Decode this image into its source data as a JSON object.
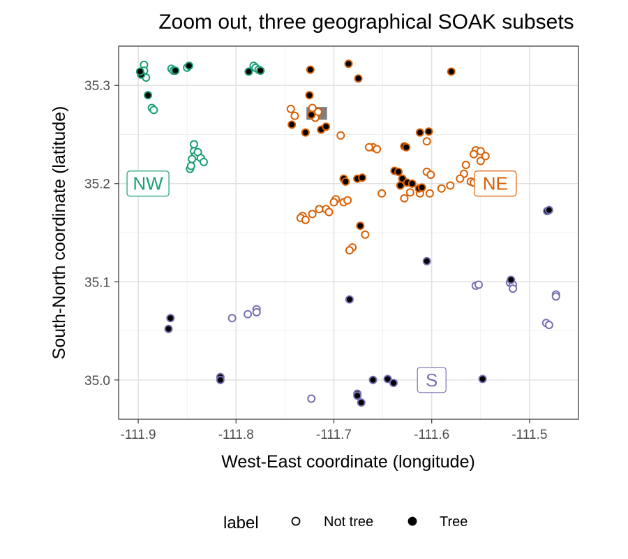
{
  "chart_data": {
    "type": "scatter",
    "title": "Zoom out, three geographical SOAK subsets",
    "xlabel": "West-East coordinate (longitude)",
    "ylabel": "South-North coordinate (latitude)",
    "xlim": [
      -111.92,
      -111.45
    ],
    "ylim": [
      34.96,
      35.34
    ],
    "x_ticks": [
      -111.9,
      -111.8,
      -111.7,
      -111.6,
      -111.5
    ],
    "x_tick_labels": [
      "-111.9",
      "-111.8",
      "-111.7",
      "-111.6",
      "-111.5"
    ],
    "y_ticks": [
      35.0,
      35.1,
      35.2,
      35.3
    ],
    "y_tick_labels": [
      "35.0",
      "35.1",
      "35.2",
      "35.3"
    ],
    "grid": true,
    "legend": {
      "title": "label",
      "placement": "bottom",
      "entries": [
        {
          "name": "Not tree",
          "marker": "open-circle"
        },
        {
          "name": "Tree",
          "marker": "filled-circle"
        }
      ]
    },
    "regions": [
      {
        "name": "NW",
        "color": "#1b9e77",
        "label_x": -111.89,
        "label_y": 35.2
      },
      {
        "name": "NE",
        "color": "#d95f02",
        "label_x": -111.535,
        "label_y": 35.2
      },
      {
        "name": "S",
        "color": "#7570b3",
        "label_x": -111.6,
        "label_y": 35.0
      }
    ],
    "highlight_box": {
      "x_range": [
        -111.728,
        -111.707
      ],
      "y_range": [
        35.265,
        35.278
      ],
      "color": "#7f7f7f"
    },
    "series": [
      {
        "region": "NW",
        "color": "#1b9e77",
        "not_tree": [
          [
            -111.894,
            35.321
          ],
          [
            -111.894,
            35.315
          ],
          [
            -111.892,
            35.308
          ],
          [
            -111.886,
            35.277
          ],
          [
            -111.884,
            35.275
          ],
          [
            -111.866,
            35.317
          ],
          [
            -111.864,
            35.315
          ],
          [
            -111.85,
            35.318
          ],
          [
            -111.843,
            35.24
          ],
          [
            -111.843,
            35.233
          ],
          [
            -111.842,
            35.228
          ],
          [
            -111.845,
            35.225
          ],
          [
            -111.839,
            35.232
          ],
          [
            -111.836,
            35.226
          ],
          [
            -111.847,
            35.215
          ],
          [
            -111.846,
            35.218
          ],
          [
            -111.833,
            35.222
          ],
          [
            -111.782,
            35.32
          ],
          [
            -111.78,
            35.318
          ],
          [
            -111.777,
            35.316
          ]
        ],
        "tree": [
          [
            -111.897,
            35.311
          ],
          [
            -111.898,
            35.314
          ],
          [
            -111.89,
            35.29
          ],
          [
            -111.862,
            35.315
          ],
          [
            -111.848,
            35.32
          ],
          [
            -111.787,
            35.314
          ],
          [
            -111.775,
            35.315
          ]
        ]
      },
      {
        "region": "NE",
        "color": "#d95f02",
        "not_tree": [
          [
            -111.722,
            35.277
          ],
          [
            -111.716,
            35.273
          ],
          [
            -111.719,
            35.267
          ],
          [
            -111.744,
            35.276
          ],
          [
            -111.74,
            35.269
          ],
          [
            -111.693,
            35.249
          ],
          [
            -111.66,
            35.237
          ],
          [
            -111.664,
            35.237
          ],
          [
            -111.656,
            35.235
          ],
          [
            -111.605,
            35.243
          ],
          [
            -111.555,
            35.234
          ],
          [
            -111.55,
            35.233
          ],
          [
            -111.557,
            35.23
          ],
          [
            -111.55,
            35.223
          ],
          [
            -111.565,
            35.219
          ],
          [
            -111.545,
            35.228
          ],
          [
            -111.567,
            35.21
          ],
          [
            -111.571,
            35.205
          ],
          [
            -111.56,
            35.202
          ],
          [
            -111.557,
            35.201
          ],
          [
            -111.553,
            35.203
          ],
          [
            -111.581,
            35.198
          ],
          [
            -111.59,
            35.195
          ],
          [
            -111.602,
            35.19
          ],
          [
            -111.612,
            35.19
          ],
          [
            -111.622,
            35.191
          ],
          [
            -111.628,
            35.185
          ],
          [
            -111.605,
            35.212
          ],
          [
            -111.601,
            35.209
          ],
          [
            -111.651,
            35.19
          ],
          [
            -111.69,
            35.181
          ],
          [
            -111.686,
            35.183
          ],
          [
            -111.698,
            35.184
          ],
          [
            -111.7,
            35.181
          ],
          [
            -111.732,
            35.167
          ],
          [
            -111.734,
            35.165
          ],
          [
            -111.729,
            35.163
          ],
          [
            -111.722,
            35.169
          ],
          [
            -111.715,
            35.174
          ],
          [
            -111.708,
            35.174
          ],
          [
            -111.705,
            35.171
          ],
          [
            -111.681,
            35.135
          ],
          [
            -111.684,
            35.132
          ],
          [
            -111.668,
            35.148
          ]
        ],
        "tree": [
          [
            -111.724,
            35.316
          ],
          [
            -111.685,
            35.322
          ],
          [
            -111.675,
            35.307
          ],
          [
            -111.58,
            35.314
          ],
          [
            -111.725,
            35.29
          ],
          [
            -111.743,
            35.26
          ],
          [
            -111.729,
            35.252
          ],
          [
            -111.723,
            35.27
          ],
          [
            -111.713,
            35.255
          ],
          [
            -111.708,
            35.258
          ],
          [
            -111.612,
            35.252
          ],
          [
            -111.603,
            35.253
          ],
          [
            -111.628,
            35.238
          ],
          [
            -111.626,
            35.237
          ],
          [
            -111.69,
            35.205
          ],
          [
            -111.688,
            35.202
          ],
          [
            -111.676,
            35.205
          ],
          [
            -111.671,
            35.206
          ],
          [
            -111.638,
            35.213
          ],
          [
            -111.634,
            35.212
          ],
          [
            -111.63,
            35.205
          ],
          [
            -111.632,
            35.198
          ],
          [
            -111.625,
            35.201
          ],
          [
            -111.62,
            35.2
          ],
          [
            -111.613,
            35.195
          ],
          [
            -111.61,
            35.196
          ],
          [
            -111.673,
            35.157
          ]
        ]
      },
      {
        "region": "S",
        "color": "#7570b3",
        "not_tree": [
          [
            -111.804,
            35.063
          ],
          [
            -111.779,
            35.072
          ],
          [
            -111.779,
            35.069
          ],
          [
            -111.788,
            35.067
          ],
          [
            -111.723,
            34.981
          ],
          [
            -111.555,
            35.096
          ],
          [
            -111.552,
            35.097
          ],
          [
            -111.52,
            35.099
          ],
          [
            -111.517,
            35.097
          ],
          [
            -111.517,
            35.093
          ],
          [
            -111.483,
            35.058
          ],
          [
            -111.48,
            35.056
          ],
          [
            -111.473,
            35.087
          ],
          [
            -111.473,
            35.085
          ]
        ],
        "tree": [
          [
            -111.867,
            35.063
          ],
          [
            -111.869,
            35.052
          ],
          [
            -111.816,
            35.003
          ],
          [
            -111.816,
            35.0
          ],
          [
            -111.684,
            35.082
          ],
          [
            -111.676,
            34.986
          ],
          [
            -111.676,
            34.984
          ],
          [
            -111.672,
            34.977
          ],
          [
            -111.66,
            35.0
          ],
          [
            -111.645,
            35.001
          ],
          [
            -111.639,
            34.997
          ],
          [
            -111.605,
            35.121
          ],
          [
            -111.548,
            35.001
          ],
          [
            -111.519,
            35.102
          ],
          [
            -111.482,
            35.172
          ],
          [
            -111.48,
            35.173
          ]
        ]
      }
    ]
  }
}
